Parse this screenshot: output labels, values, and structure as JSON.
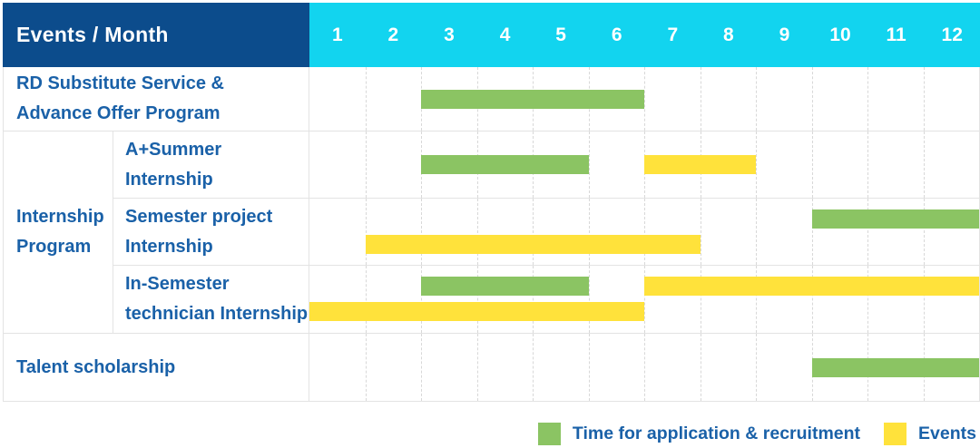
{
  "title_cell": "Events / Month",
  "months": [
    "1",
    "2",
    "3",
    "4",
    "5",
    "6",
    "7",
    "8",
    "9",
    "10",
    "11",
    "12"
  ],
  "colors": {
    "header_navy": "#0C4C8C",
    "months_cyan": "#12D4EF",
    "bar_green": "#8BC463",
    "bar_yellow": "#FFE23B",
    "text_blue": "#1A61A8",
    "grid_line": "#E3E3E3",
    "month_line": "#D8D8D8"
  },
  "group_label_lines": [
    "Internship",
    "Program"
  ],
  "chart_data": {
    "type": "gantt",
    "x_unit": "month",
    "x_range": [
      1,
      12
    ],
    "grid": "dashed-vertical-month-lines",
    "legend_position": "bottom-right",
    "series_meaning": {
      "green": "Time for application & recruitment",
      "yellow": "Events"
    },
    "rows": [
      {
        "id": "rd-substitute",
        "group": "",
        "label_lines": [
          "RD Substitute Service &",
          "Advance Offer Program"
        ],
        "bars": [
          {
            "color": "green",
            "start": 3,
            "end": 6,
            "lane": "single"
          }
        ]
      },
      {
        "id": "a-plus-summer-internship",
        "group": "Internship Program",
        "label_lines": [
          "A+Summer",
          "Internship"
        ],
        "bars": [
          {
            "color": "green",
            "start": 3,
            "end": 5,
            "lane": "single"
          },
          {
            "color": "yellow",
            "start": 7,
            "end": 8,
            "lane": "single"
          }
        ]
      },
      {
        "id": "semester-project-internship",
        "group": "Internship Program",
        "label_lines": [
          "Semester project",
          "Internship"
        ],
        "bars": [
          {
            "color": "green",
            "start": 10,
            "end": 12,
            "lane": "top"
          },
          {
            "color": "yellow",
            "start": 2,
            "end": 7,
            "lane": "bottom"
          }
        ]
      },
      {
        "id": "in-semester-technician-internship",
        "group": "Internship Program",
        "label_lines": [
          "In-Semester",
          "technician Internship"
        ],
        "bars": [
          {
            "color": "green",
            "start": 3,
            "end": 5,
            "lane": "top"
          },
          {
            "color": "yellow",
            "start": 7,
            "end": 12,
            "lane": "top"
          },
          {
            "color": "yellow",
            "start": 1,
            "end": 6,
            "lane": "bottom"
          }
        ]
      },
      {
        "id": "talent-scholarship",
        "group": "",
        "label_lines": [
          "Talent scholarship"
        ],
        "bars": [
          {
            "color": "green",
            "start": 10,
            "end": 12,
            "lane": "single"
          }
        ]
      }
    ],
    "legend": [
      {
        "color": "green",
        "label": "Time for application & recruitment"
      },
      {
        "color": "yellow",
        "label": "Events"
      }
    ]
  }
}
